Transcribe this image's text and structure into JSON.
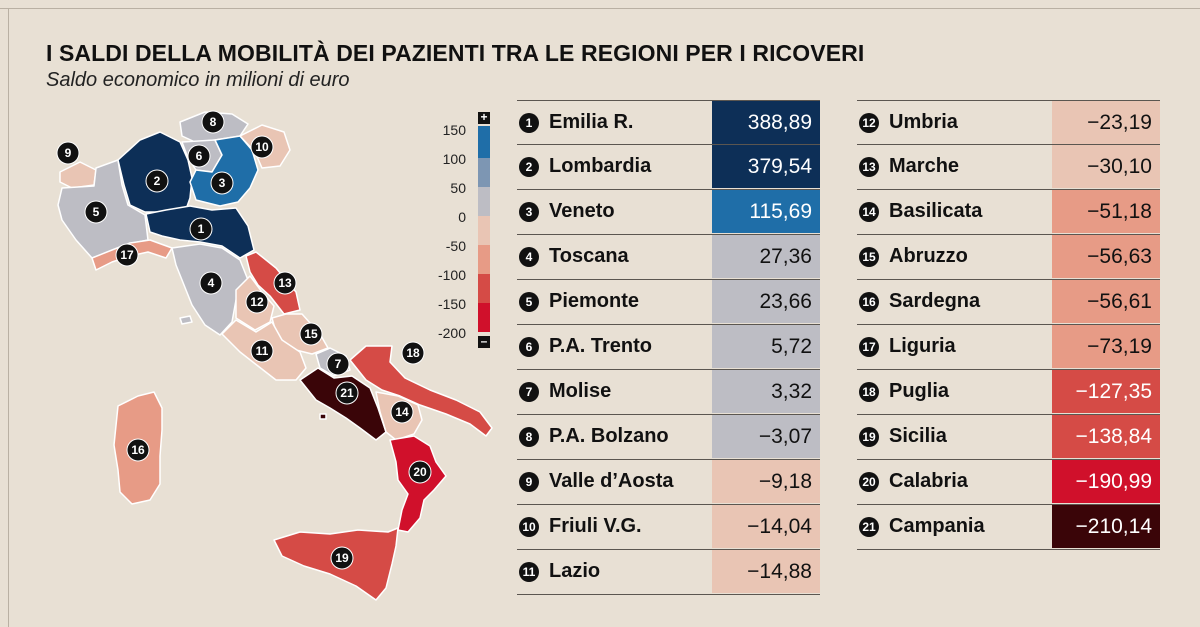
{
  "title": "I SALDI DELLA MOBILITÀ DEI PAZIENTI TRA LE REGIONI PER I RICOVERI",
  "subtitle": "Saldo economico in milioni di euro",
  "legend": {
    "ticks": [
      "150",
      "100",
      "50",
      "0",
      "-50",
      "-100",
      "-150",
      "-200"
    ],
    "plus": "+",
    "minus": "–",
    "colors": [
      "#1f6ea8",
      "#7d96b3",
      "#bdbdc4",
      "#e9c5b4",
      "#e79b86",
      "#d54b46",
      "#d0102b"
    ]
  },
  "regions": [
    {
      "n": "1",
      "name": "Emilia R.",
      "value": "388,89",
      "color": "#0d2f57"
    },
    {
      "n": "2",
      "name": "Lombardia",
      "value": "379,54",
      "color": "#0d2f57"
    },
    {
      "n": "3",
      "name": "Veneto",
      "value": "115,69",
      "color": "#1f6ea8"
    },
    {
      "n": "4",
      "name": "Toscana",
      "value": "27,36",
      "color": "#bdbdc4"
    },
    {
      "n": "5",
      "name": "Piemonte",
      "value": "23,66",
      "color": "#bdbdc4"
    },
    {
      "n": "6",
      "name": "P.A. Trento",
      "value": "5,72",
      "color": "#bdbdc4"
    },
    {
      "n": "7",
      "name": "Molise",
      "value": "3,32",
      "color": "#bdbdc4"
    },
    {
      "n": "8",
      "name": "P.A. Bolzano",
      "value": "−3,07",
      "color": "#bdbdc4"
    },
    {
      "n": "9",
      "name": "Valle d’Aosta",
      "value": "−9,18",
      "color": "#e9c5b4"
    },
    {
      "n": "10",
      "name": "Friuli V.G.",
      "value": "−14,04",
      "color": "#e9c5b4"
    },
    {
      "n": "11",
      "name": "Lazio",
      "value": "−14,88",
      "color": "#e9c5b4"
    },
    {
      "n": "12",
      "name": "Umbria",
      "value": "−23,19",
      "color": "#e9c5b4"
    },
    {
      "n": "13",
      "name": "Marche",
      "value": "−30,10",
      "color": "#e9c5b4"
    },
    {
      "n": "14",
      "name": "Basilicata",
      "value": "−51,18",
      "color": "#e79b86"
    },
    {
      "n": "15",
      "name": "Abruzzo",
      "value": "−56,63",
      "color": "#e79b86"
    },
    {
      "n": "16",
      "name": "Sardegna",
      "value": "−56,61",
      "color": "#e79b86"
    },
    {
      "n": "17",
      "name": "Liguria",
      "value": "−73,19",
      "color": "#e79b86"
    },
    {
      "n": "18",
      "name": "Puglia",
      "value": "−127,35",
      "color": "#d54b46"
    },
    {
      "n": "19",
      "name": "Sicilia",
      "value": "−138,84",
      "color": "#d54b46"
    },
    {
      "n": "20",
      "name": "Calabria",
      "value": "−190,99",
      "color": "#d0102b"
    },
    {
      "n": "21",
      "name": "Campania",
      "value": "−210,14",
      "color": "#3a0508"
    }
  ]
}
